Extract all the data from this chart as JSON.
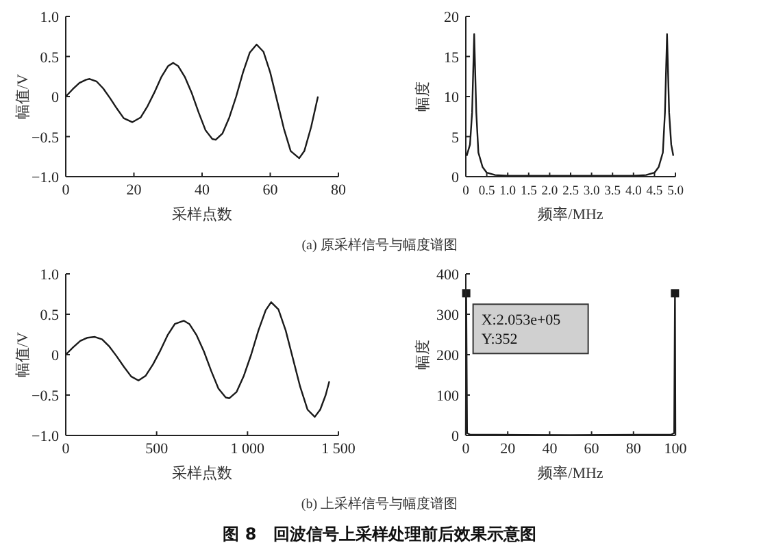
{
  "chart_data": [
    {
      "type": "line",
      "xlabel": "采样点数",
      "ylabel": "幅值/V",
      "xlim": [
        0,
        80
      ],
      "ylim": [
        -1,
        1
      ],
      "xticks": [
        0,
        20,
        40,
        60,
        80
      ],
      "yticks": [
        {
          "value": -1,
          "label": "−1.0"
        },
        {
          "value": -0.5,
          "label": "−0.5"
        },
        0,
        0.5,
        {
          "value": 1,
          "label": "1.0"
        }
      ],
      "grid": false,
      "series": [
        {
          "color": "#1a1a1a",
          "x": [
            0,
            2,
            4,
            6,
            7,
            9,
            11,
            13,
            15,
            17,
            19.5,
            22,
            24,
            26,
            28,
            30,
            31.5,
            33,
            35,
            37,
            39,
            41,
            43,
            44,
            46,
            48,
            50,
            52,
            54,
            56,
            58,
            60,
            62,
            64,
            66,
            68.5,
            70,
            72,
            74
          ],
          "values": [
            0,
            0.09,
            0.17,
            0.21,
            0.22,
            0.19,
            0.1,
            -0.02,
            -0.15,
            -0.27,
            -0.32,
            -0.26,
            -0.12,
            0.05,
            0.24,
            0.38,
            0.42,
            0.38,
            0.24,
            0.04,
            -0.2,
            -0.42,
            -0.53,
            -0.54,
            -0.46,
            -0.26,
            0,
            0.3,
            0.55,
            0.65,
            0.56,
            0.3,
            -0.05,
            -0.4,
            -0.68,
            -0.77,
            -0.68,
            -0.38,
            0
          ]
        }
      ]
    },
    {
      "type": "line",
      "xlabel": "频率/MHz",
      "ylabel": "幅度",
      "xlim": [
        0,
        5
      ],
      "ylim": [
        0,
        20
      ],
      "xticks": [
        0,
        0.5,
        {
          "value": 1,
          "label": "1.0"
        },
        1.5,
        {
          "value": 2,
          "label": "2.0"
        },
        2.5,
        {
          "value": 3,
          "label": "3.0"
        },
        3.5,
        {
          "value": 4,
          "label": "4.0"
        },
        4.5,
        {
          "value": 5,
          "label": "5.0"
        }
      ],
      "yticks": [
        0,
        5,
        10,
        15,
        20
      ],
      "grid": false,
      "annotations": [
        "(a) 原采样信号与幅度谱图"
      ],
      "series": [
        {
          "color": "#1a1a1a",
          "x": [
            0.02,
            0.1,
            0.15,
            0.2,
            0.25,
            0.3,
            0.4,
            0.5,
            0.7,
            1,
            2.5,
            4,
            4.3,
            4.5,
            4.6,
            4.7,
            4.75,
            4.8,
            4.85,
            4.9,
            4.95
          ],
          "values": [
            2.6,
            4,
            8,
            17.8,
            8,
            3,
            1.2,
            0.5,
            0.2,
            0.1,
            0.1,
            0.1,
            0.2,
            0.5,
            1.2,
            3,
            8,
            17.8,
            8,
            4,
            2.6
          ]
        }
      ]
    },
    {
      "type": "line",
      "xlabel": "采样点数",
      "ylabel": "幅值/V",
      "xlim": [
        0,
        1500
      ],
      "ylim": [
        -1,
        1
      ],
      "xticks": [
        0,
        500,
        {
          "value": 1000,
          "label": "1 000"
        },
        {
          "value": 1500,
          "label": "1 500"
        }
      ],
      "yticks": [
        {
          "value": -1,
          "label": "−1.0"
        },
        {
          "value": -0.5,
          "label": "−0.5"
        },
        0,
        0.5,
        {
          "value": 1,
          "label": "1.0"
        }
      ],
      "grid": false,
      "series": [
        {
          "color": "#1a1a1a",
          "x": [
            0,
            40,
            80,
            120,
            160,
            200,
            240,
            280,
            320,
            360,
            400,
            440,
            480,
            520,
            560,
            600,
            650,
            680,
            720,
            760,
            800,
            840,
            880,
            900,
            940,
            980,
            1020,
            1060,
            1100,
            1130,
            1170,
            1210,
            1250,
            1290,
            1330,
            1370,
            1400,
            1430,
            1450
          ],
          "values": [
            0,
            0.09,
            0.17,
            0.21,
            0.22,
            0.19,
            0.1,
            -0.02,
            -0.15,
            -0.27,
            -0.32,
            -0.26,
            -0.12,
            0.05,
            0.24,
            0.38,
            0.42,
            0.38,
            0.24,
            0.04,
            -0.2,
            -0.42,
            -0.53,
            -0.54,
            -0.46,
            -0.26,
            0,
            0.3,
            0.55,
            0.65,
            0.56,
            0.3,
            -0.05,
            -0.4,
            -0.68,
            -0.77,
            -0.68,
            -0.5,
            -0.33
          ]
        }
      ]
    },
    {
      "type": "line",
      "xlabel": "频率/MHz",
      "ylabel": "幅度",
      "xlim": [
        0,
        100
      ],
      "ylim": [
        0,
        400
      ],
      "xticks": [
        0,
        20,
        40,
        60,
        80,
        100
      ],
      "yticks": [
        0,
        100,
        200,
        300,
        400
      ],
      "grid": false,
      "annotations": [
        "(b) 上采样信号与幅度谱图",
        "图 8　回波信号上采样处理前后效果示意图",
        {
          "text": "X:2.053e+05\nY:352",
          "x": 0.2053,
          "y": 352
        }
      ],
      "series": [
        {
          "color": "#1a1a1a",
          "x": [
            0,
            0.2053,
            0.6,
            2,
            50,
            98,
            99.4,
            99.79,
            100
          ],
          "values": [
            0,
            352,
            6,
            2,
            1,
            2,
            6,
            352,
            0
          ]
        },
        {
          "type": "scatter",
          "marker": "square",
          "color": "#1a1a1a",
          "x": [
            0.2053,
            99.79
          ],
          "values": [
            352,
            352
          ]
        }
      ]
    }
  ]
}
